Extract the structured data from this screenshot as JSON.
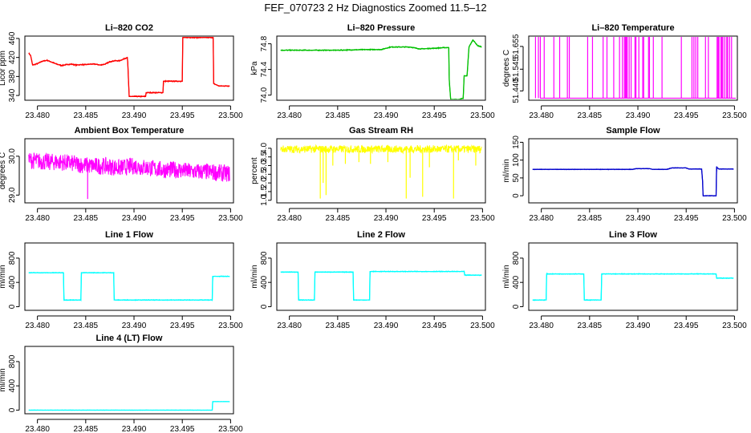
{
  "title": "FEF_070723  2 Hz Diagnostics Zoomed 11.5–12",
  "chart_data": [
    {
      "type": "line",
      "title": "Li–820 CO2",
      "ylabel": "Licor ppm",
      "color": "#ff0000",
      "xlim": [
        23.4787,
        23.5003
      ],
      "ylim": [
        330,
        465
      ],
      "xticks": [
        "23.480",
        "23.485",
        "23.490",
        "23.495",
        "23.500"
      ],
      "yticks": [
        "340",
        "380",
        "420",
        "460"
      ],
      "x": [
        23.4791,
        23.4793,
        23.4795,
        23.48,
        23.4805,
        23.481,
        23.4815,
        23.482,
        23.4825,
        23.483,
        23.4835,
        23.484,
        23.4845,
        23.485,
        23.4855,
        23.486,
        23.4865,
        23.487,
        23.4875,
        23.488,
        23.4885,
        23.4893,
        23.48935,
        23.4895,
        23.4905,
        23.4912,
        23.49125,
        23.4925,
        23.493,
        23.49305,
        23.4942,
        23.495,
        23.49505,
        23.497,
        23.4982,
        23.49825,
        23.4988,
        23.4993,
        23.4999
      ],
      "y": [
        429,
        424,
        404,
        407,
        412,
        414,
        410,
        406,
        403,
        405,
        406,
        404,
        405,
        405,
        406,
        406,
        404,
        406,
        411,
        413,
        413,
        420,
        410,
        338,
        338,
        338,
        346,
        346,
        346,
        370,
        370,
        370,
        462,
        462,
        462,
        365,
        360,
        360,
        360
      ],
      "noise": 1.2
    },
    {
      "type": "line",
      "title": "Li–820 Pressure",
      "ylabel": "kPa",
      "color": "#00c000",
      "xlim": [
        23.4787,
        23.5003
      ],
      "ylim": [
        73.92,
        74.92
      ],
      "xticks": [
        "23.480",
        "23.485",
        "23.490",
        "23.495",
        "23.500"
      ],
      "yticks": [
        "74.0",
        "74.4",
        "74.8"
      ],
      "x": [
        23.4791,
        23.482,
        23.485,
        23.488,
        23.4895,
        23.49,
        23.4905,
        23.4925,
        23.4935,
        23.495,
        23.496,
        23.4965,
        23.49655,
        23.4967,
        23.4975,
        23.498,
        23.4981,
        23.4984,
        23.4986,
        23.499,
        23.4995,
        23.4999
      ],
      "y": [
        74.7,
        74.7,
        74.7,
        74.71,
        74.71,
        74.73,
        74.75,
        74.75,
        74.72,
        74.73,
        74.74,
        74.74,
        74.24,
        73.93,
        73.93,
        73.95,
        74.3,
        74.3,
        74.75,
        74.86,
        74.77,
        74.75
      ],
      "noise": 0.008
    },
    {
      "type": "spike",
      "title": "Li–820 Temperature",
      "ylabel": "degrees C",
      "color": "#ff00ff",
      "xlim": [
        23.4787,
        23.5003
      ],
      "ylim": [
        51.395,
        51.705
      ],
      "xticks": [
        "23.480",
        "23.485",
        "23.490",
        "23.495",
        "23.500"
      ],
      "yticks": [
        "51.440",
        "51.545",
        "51.655"
      ],
      "base": 51.405,
      "peak": 51.705,
      "spikes": [
        23.4794,
        23.4797,
        23.4799,
        23.4803,
        23.4813,
        23.4819,
        23.4827,
        23.4829,
        23.4848,
        23.4853,
        23.4864,
        23.4868,
        23.4875,
        23.4881,
        23.4884,
        23.4886,
        23.4887,
        23.4888,
        23.4889,
        23.4891,
        23.4893,
        23.4897,
        23.4898,
        23.4901,
        23.4905,
        23.4906,
        23.4911,
        23.4912,
        23.4916,
        23.4925,
        23.4945,
        23.4956,
        23.4958,
        23.496,
        23.4962,
        23.497,
        23.4973,
        23.4982,
        23.4983,
        23.4984,
        23.4986,
        23.4987,
        23.4988,
        23.499,
        23.4992,
        23.4993,
        23.4995,
        23.4997
      ]
    },
    {
      "type": "band",
      "title": "Ambient Box Temperature",
      "ylabel": "degrees C",
      "color": "#ff00ff",
      "xlim": [
        23.4787,
        23.5003
      ],
      "ylim": [
        28.8,
        30.45
      ],
      "xticks": [
        "23.480",
        "23.485",
        "23.490",
        "23.495",
        "23.500"
      ],
      "yticks": [
        "29.0",
        "30.0"
      ],
      "x": [
        23.4791,
        23.481,
        23.4825,
        23.484,
        23.4855,
        23.487,
        23.4885,
        23.49,
        23.4915,
        23.493,
        23.4945,
        23.496,
        23.4975,
        23.4999
      ],
      "y": [
        29.9,
        29.85,
        29.85,
        29.8,
        29.75,
        29.75,
        29.7,
        29.75,
        29.7,
        29.65,
        29.65,
        29.6,
        29.6,
        29.55
      ],
      "noise": 0.22,
      "dips": [
        [
          23.4852,
          28.9
        ]
      ]
    },
    {
      "type": "band",
      "title": "Gas Stream RH",
      "ylabel": "percent",
      "color": "#ffff00",
      "xlim": [
        23.4787,
        23.5003
      ],
      "ylim": [
        0.85,
        4.55
      ],
      "xticks": [
        "23.480",
        "23.485",
        "23.490",
        "23.495",
        "23.500"
      ],
      "yticks": [
        "1.0",
        "1.5",
        "2.0",
        "2.5",
        "3.0",
        "3.5",
        "4.0"
      ],
      "x": [
        23.4791,
        23.4999
      ],
      "y": [
        3.95,
        3.95
      ],
      "noise": 0.22,
      "dips": [
        [
          23.4832,
          1.1
        ],
        [
          23.4835,
          2.0
        ],
        [
          23.4838,
          1.3
        ],
        [
          23.4845,
          3.0
        ],
        [
          23.4858,
          3.1
        ],
        [
          23.4872,
          3.2
        ],
        [
          23.4884,
          3.1
        ],
        [
          23.4902,
          3.2
        ],
        [
          23.4921,
          1.1
        ],
        [
          23.4925,
          2.3
        ],
        [
          23.4938,
          1.2
        ],
        [
          23.4945,
          2.9
        ],
        [
          23.497,
          1.1
        ],
        [
          23.4975,
          3.3
        ],
        [
          23.4993,
          3.0
        ]
      ]
    },
    {
      "type": "line",
      "title": "Sample Flow",
      "ylabel": "ml/min",
      "color": "#0000cc",
      "xlim": [
        23.4787,
        23.5003
      ],
      "ylim": [
        -20,
        160
      ],
      "xticks": [
        "23.480",
        "23.485",
        "23.490",
        "23.495",
        "23.500"
      ],
      "yticks": [
        "0",
        "50",
        "100",
        "150"
      ],
      "x": [
        23.4791,
        23.487,
        23.4895,
        23.4898,
        23.4912,
        23.4915,
        23.493,
        23.4935,
        23.495,
        23.4953,
        23.4966,
        23.4967,
        23.49675,
        23.4981,
        23.49815,
        23.4984,
        23.4999
      ],
      "y": [
        74,
        74,
        74,
        76,
        76,
        74,
        74,
        78,
        78,
        75,
        75,
        40,
        0,
        0,
        80,
        75,
        75
      ],
      "noise": 0.8
    },
    {
      "type": "line",
      "title": "Line 1 Flow",
      "ylabel": "ml/min",
      "color": "#00ffff",
      "xlim": [
        23.4787,
        23.5003
      ],
      "ylim": [
        -60,
        1050
      ],
      "xticks": [
        "23.480",
        "23.485",
        "23.490",
        "23.495",
        "23.500"
      ],
      "yticks": [
        "0",
        "400",
        "800"
      ],
      "x": [
        23.4791,
        23.4827,
        23.48275,
        23.4845,
        23.48455,
        23.4879,
        23.48795,
        23.4981,
        23.49815,
        23.4999
      ],
      "y": [
        560,
        560,
        110,
        110,
        560,
        560,
        110,
        110,
        500,
        500
      ],
      "noise": 6
    },
    {
      "type": "line",
      "title": "Line 2 Flow",
      "ylabel": "ml/min",
      "color": "#00ffff",
      "xlim": [
        23.4787,
        23.5003
      ],
      "ylim": [
        -60,
        1050
      ],
      "xticks": [
        "23.480",
        "23.485",
        "23.490",
        "23.495",
        "23.500"
      ],
      "yticks": [
        "0",
        "400",
        "800"
      ],
      "x": [
        23.4791,
        23.4809,
        23.48095,
        23.4826,
        23.48265,
        23.4866,
        23.48665,
        23.4883,
        23.48835,
        23.4981,
        23.49815,
        23.4999
      ],
      "y": [
        570,
        570,
        110,
        110,
        570,
        570,
        110,
        110,
        580,
        580,
        520,
        520
      ],
      "noise": 6
    },
    {
      "type": "line",
      "title": "Line 3 Flow",
      "ylabel": "ml/min",
      "color": "#00ffff",
      "xlim": [
        23.4787,
        23.5003
      ],
      "ylim": [
        -60,
        1050
      ],
      "xticks": [
        "23.480",
        "23.485",
        "23.490",
        "23.495",
        "23.500"
      ],
      "yticks": [
        "0",
        "400",
        "800"
      ],
      "x": [
        23.4791,
        23.4805,
        23.48055,
        23.4844,
        23.48445,
        23.4862,
        23.48625,
        23.4981,
        23.49815,
        23.4999
      ],
      "y": [
        110,
        110,
        540,
        540,
        110,
        110,
        540,
        540,
        470,
        470
      ],
      "noise": 6
    },
    {
      "type": "line",
      "title": "Line 4 (LT) Flow",
      "ylabel": "ml/min",
      "color": "#00ffff",
      "xlim": [
        23.4787,
        23.5003
      ],
      "ylim": [
        -60,
        1050
      ],
      "xticks": [
        "23.480",
        "23.485",
        "23.490",
        "23.495",
        "23.500"
      ],
      "yticks": [
        "0",
        "400",
        "800"
      ],
      "x": [
        23.4791,
        23.4981,
        23.49815,
        23.4999
      ],
      "y": [
        0,
        0,
        140,
        140
      ],
      "noise": 2
    }
  ]
}
